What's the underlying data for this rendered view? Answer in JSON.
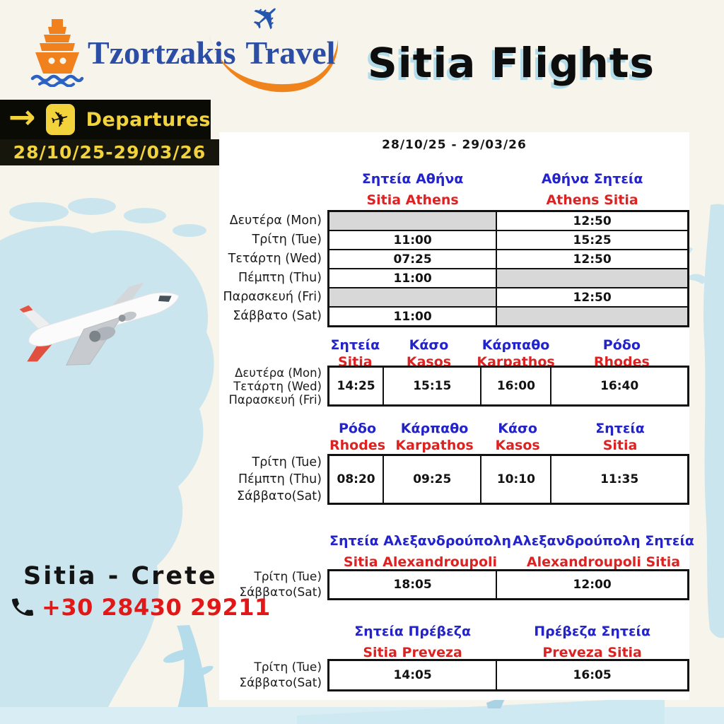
{
  "brand": {
    "first": "Tzortzakis",
    "second": "Travel"
  },
  "title": "Sitia Flights",
  "board": {
    "label": "Departures",
    "dates": "28/10/25-29/03/26"
  },
  "schedule": {
    "date_range": "28/10/25 - 29/03/26",
    "tables": [
      {
        "headers": [
          {
            "el": "Σητεία Αθήνα",
            "en": "Sitia Athens"
          },
          {
            "el": "Αθήνα Σητεία",
            "en": "Athens Sitia"
          }
        ],
        "rows": [
          {
            "day": "Δευτέρα (Mon)",
            "cells": [
              "",
              "12:50"
            ]
          },
          {
            "day": "Τρίτη (Tue)",
            "cells": [
              "11:00",
              "15:25"
            ]
          },
          {
            "day": "Τετάρτη (Wed)",
            "cells": [
              "07:25",
              "12:50"
            ]
          },
          {
            "day": "Πέμπτη (Thu)",
            "cells": [
              "11:00",
              ""
            ]
          },
          {
            "day": "Παρασκευή (Fri)",
            "cells": [
              "",
              "12:50"
            ]
          },
          {
            "day": "Σάββατο (Sat)",
            "cells": [
              "11:00",
              ""
            ]
          }
        ]
      },
      {
        "headers": [
          {
            "el": "Σητεία",
            "en": "Sitia"
          },
          {
            "el": "Κάσο",
            "en": "Kasos"
          },
          {
            "el": "Κάρπαθο",
            "en": "Karpathos"
          },
          {
            "el": "Ρόδο",
            "en": "Rhodes"
          }
        ],
        "days": [
          "Δευτέρα (Mon)",
          "Τετάρτη (Wed)",
          "Παρασκευή (Fri)"
        ],
        "times": [
          "14:25",
          "15:15",
          "16:00",
          "16:40"
        ]
      },
      {
        "headers": [
          {
            "el": "Ρόδο",
            "en": "Rhodes"
          },
          {
            "el": "Κάρπαθο",
            "en": "Karpathos"
          },
          {
            "el": "Κάσο",
            "en": "Kasos"
          },
          {
            "el": "Σητεία",
            "en": "Sitia"
          }
        ],
        "days": [
          "Τρίτη (Tue)",
          "Πέμπτη (Thu)",
          "Σάββατο(Sat)"
        ],
        "times": [
          "08:20",
          "09:25",
          "10:10",
          "11:35"
        ]
      },
      {
        "headers": [
          {
            "el": "Σητεία Αλεξανδρούπολη",
            "en": "Sitia Alexandroupoli"
          },
          {
            "el": "Αλεξανδρούπολη Σητεία",
            "en": "Alexandroupoli Sitia"
          }
        ],
        "days": [
          "Τρίτη (Tue)",
          "Σάββατο(Sat)"
        ],
        "times": [
          "18:05",
          "12:00"
        ]
      },
      {
        "headers": [
          {
            "el": "Σητεία Πρέβεζα",
            "en": "Sitia Preveza"
          },
          {
            "el": "Πρέβεζα Σητεία",
            "en": "Preveza Sitia"
          }
        ],
        "days": [
          "Τρίτη (Tue)",
          "Σάββατο(Sat)"
        ],
        "times": [
          "14:05",
          "16:05"
        ]
      }
    ]
  },
  "contact": {
    "location": "Sitia - Crete",
    "phone": "+30 28430 29211"
  },
  "colors": {
    "greek_header": "#2323cc",
    "english_header": "#dd2222",
    "accent_yellow": "#f2d33c",
    "brand_blue": "#2b4da5",
    "brand_orange": "#f0811c",
    "phone_red": "#e21717",
    "map_blue": "#cbe5ee",
    "no_flight_gray": "#d8d8d8"
  }
}
